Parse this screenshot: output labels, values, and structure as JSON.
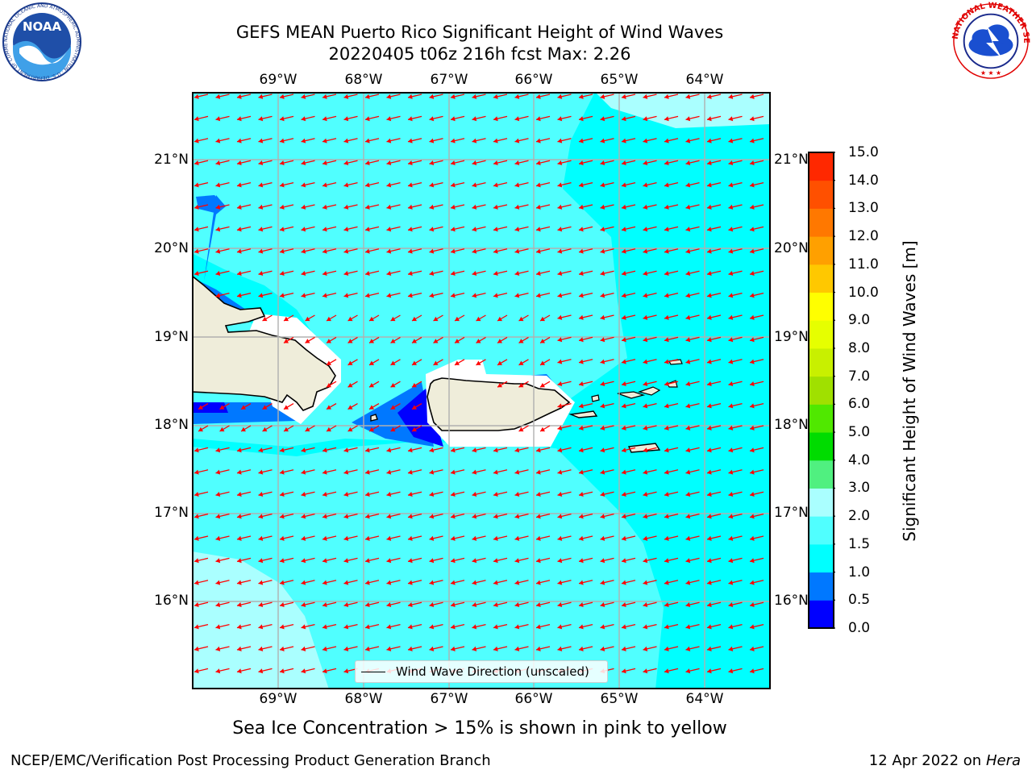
{
  "title": {
    "line1": "GEFS MEAN Puerto Rico Significant Height of Wind Waves",
    "line2": "20220405 t06z 216h fcst   Max: 2.26"
  },
  "logos": {
    "noaa": {
      "text": "NOAA",
      "ring_text": "NATIONAL OCEANIC AND ATMOSPHERIC ADMINISTRATION · U.S. DEPARTMENT OF COMMERCE"
    },
    "nws": {
      "ring_text": "NATIONAL WEATHER SERVICE"
    }
  },
  "map": {
    "lon_ticks": [
      "69°W",
      "68°W",
      "67°W",
      "66°W",
      "65°W",
      "64°W"
    ],
    "lat_ticks": [
      "21°N",
      "20°N",
      "19°N",
      "18°N",
      "17°N",
      "16°N"
    ],
    "legend_label": "Wind Wave Direction (unscaled)",
    "arrow_direction": "west-southwest",
    "colors": {
      "ocean_base": "#00ffff",
      "land": "#efedda",
      "arrow": "#ff0000",
      "coast": "#000000",
      "grid": "#b0b0b0"
    }
  },
  "colorbar": {
    "label": "Significant Height of Wind Waves [m]",
    "levels": [
      "0.0",
      "0.5",
      "1.0",
      "1.5",
      "2.0",
      "3.0",
      "4.0",
      "5.0",
      "6.0",
      "7.0",
      "8.0",
      "9.0",
      "10.0",
      "11.0",
      "12.0",
      "13.0",
      "14.0",
      "15.0"
    ],
    "colors": [
      "#0000ff",
      "#0078ff",
      "#00ffff",
      "#50ffff",
      "#aaffff",
      "#50f080",
      "#00dc00",
      "#50e800",
      "#a0e000",
      "#c8f000",
      "#e6ff00",
      "#ffff00",
      "#ffc800",
      "#ffa000",
      "#ff7800",
      "#ff5000",
      "#ff2800"
    ]
  },
  "footer": {
    "sea_ice": "Sea Ice Concentration > 15% is shown in pink to yellow",
    "left": "NCEP/EMC/Verification Post Processing Product Generation Branch",
    "right_date": "12 Apr 2022 on ",
    "right_host": "Hera"
  }
}
